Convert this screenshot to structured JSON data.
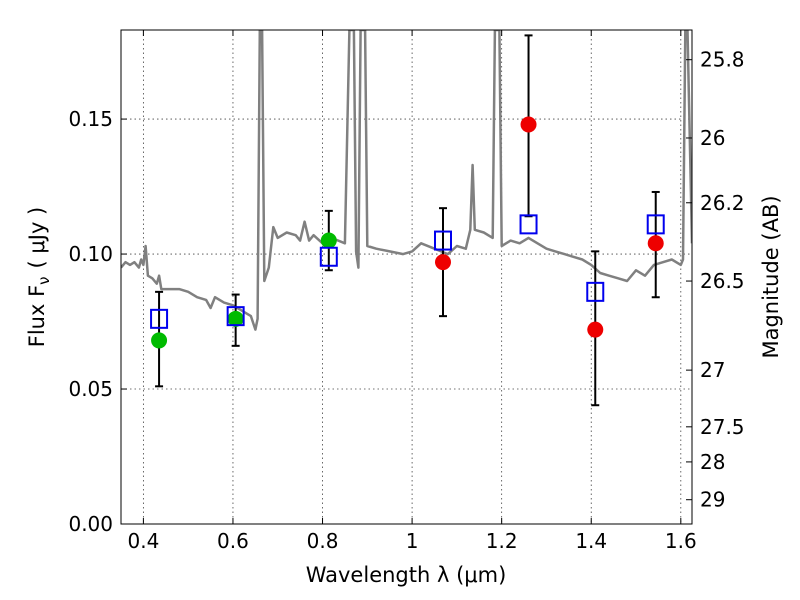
{
  "chart_data": {
    "type": "scatter",
    "xlabel": "Wavelength  λ (μm)",
    "ylabel": "Flux  F",
    "ylabel_sub": "ν",
    "ylabel_unit": "( μJy )",
    "y2label": "Magnitude (AB)",
    "xlim": [
      0.35,
      1.625
    ],
    "ylim": [
      0.0,
      0.183
    ],
    "xticks": [
      0.4,
      0.6,
      0.8,
      1.0,
      1.2,
      1.4,
      1.6
    ],
    "xtick_labels": [
      "0.4",
      "0.6",
      "0.8",
      "1",
      "1.2",
      "1.4",
      "1.6"
    ],
    "yticks": [
      0.0,
      0.05,
      0.1,
      0.15
    ],
    "ytick_labels": [
      "0.00",
      "0.05",
      "0.10",
      "0.15"
    ],
    "y2ticks": [
      {
        "label": "25.8",
        "flux": 0.172
      },
      {
        "label": "26",
        "flux": 0.143
      },
      {
        "label": "26.2",
        "flux": 0.119
      },
      {
        "label": "26.5",
        "flux": 0.09
      },
      {
        "label": "27",
        "flux": 0.057
      },
      {
        "label": "27.5",
        "flux": 0.036
      },
      {
        "label": "28",
        "flux": 0.023
      },
      {
        "label": "29",
        "flux": 0.009
      }
    ],
    "grid": true,
    "series": [
      {
        "name": "Observed (green)",
        "color": "#00bb00",
        "marker": "circle",
        "points": [
          {
            "x": 0.435,
            "y": 0.068,
            "yerr_low": 0.051,
            "yerr_high": 0.086
          },
          {
            "x": 0.606,
            "y": 0.076,
            "yerr_low": 0.066,
            "yerr_high": 0.085
          },
          {
            "x": 0.814,
            "y": 0.105,
            "yerr_low": 0.094,
            "yerr_high": 0.116
          }
        ]
      },
      {
        "name": "Observed (red)",
        "color": "#ee0000",
        "marker": "circle",
        "points": [
          {
            "x": 1.069,
            "y": 0.097,
            "yerr_low": 0.077,
            "yerr_high": 0.117
          },
          {
            "x": 1.26,
            "y": 0.148,
            "yerr_low": 0.114,
            "yerr_high": 0.181
          },
          {
            "x": 1.409,
            "y": 0.072,
            "yerr_low": 0.044,
            "yerr_high": 0.101
          },
          {
            "x": 1.544,
            "y": 0.104,
            "yerr_low": 0.084,
            "yerr_high": 0.123
          }
        ]
      },
      {
        "name": "Model (blue squares)",
        "color": "#0000ee",
        "marker": "open-square",
        "points": [
          {
            "x": 0.435,
            "y": 0.076
          },
          {
            "x": 0.606,
            "y": 0.077
          },
          {
            "x": 0.814,
            "y": 0.099
          },
          {
            "x": 1.069,
            "y": 0.105
          },
          {
            "x": 1.26,
            "y": 0.111
          },
          {
            "x": 1.409,
            "y": 0.086
          },
          {
            "x": 1.544,
            "y": 0.111
          }
        ]
      }
    ],
    "spectrum": {
      "name": "Model spectrum",
      "color": "#808080",
      "points": [
        [
          0.35,
          0.095
        ],
        [
          0.36,
          0.097
        ],
        [
          0.37,
          0.096
        ],
        [
          0.38,
          0.097
        ],
        [
          0.39,
          0.095
        ],
        [
          0.395,
          0.098
        ],
        [
          0.4,
          0.096
        ],
        [
          0.405,
          0.103
        ],
        [
          0.41,
          0.092
        ],
        [
          0.42,
          0.091
        ],
        [
          0.43,
          0.089
        ],
        [
          0.435,
          0.092
        ],
        [
          0.44,
          0.087
        ],
        [
          0.46,
          0.087
        ],
        [
          0.48,
          0.087
        ],
        [
          0.5,
          0.086
        ],
        [
          0.52,
          0.084
        ],
        [
          0.54,
          0.083
        ],
        [
          0.55,
          0.08
        ],
        [
          0.56,
          0.084
        ],
        [
          0.58,
          0.082
        ],
        [
          0.6,
          0.081
        ],
        [
          0.62,
          0.079
        ],
        [
          0.64,
          0.077
        ],
        [
          0.65,
          0.072
        ],
        [
          0.655,
          0.076
        ],
        [
          0.66,
          0.183
        ],
        [
          0.665,
          0.183
        ],
        [
          0.67,
          0.09
        ],
        [
          0.68,
          0.095
        ],
        [
          0.69,
          0.11
        ],
        [
          0.7,
          0.106
        ],
        [
          0.72,
          0.108
        ],
        [
          0.74,
          0.107
        ],
        [
          0.75,
          0.105
        ],
        [
          0.76,
          0.112
        ],
        [
          0.77,
          0.105
        ],
        [
          0.78,
          0.107
        ],
        [
          0.8,
          0.104
        ],
        [
          0.82,
          0.106
        ],
        [
          0.85,
          0.104
        ],
        [
          0.86,
          0.183
        ],
        [
          0.87,
          0.183
        ],
        [
          0.875,
          0.101
        ],
        [
          0.88,
          0.095
        ],
        [
          0.885,
          0.183
        ],
        [
          0.895,
          0.183
        ],
        [
          0.9,
          0.103
        ],
        [
          0.92,
          0.102
        ],
        [
          0.95,
          0.101
        ],
        [
          0.98,
          0.1
        ],
        [
          1.0,
          0.101
        ],
        [
          1.02,
          0.104
        ],
        [
          1.05,
          0.102
        ],
        [
          1.08,
          0.1
        ],
        [
          1.1,
          0.103
        ],
        [
          1.12,
          0.102
        ],
        [
          1.13,
          0.109
        ],
        [
          1.135,
          0.133
        ],
        [
          1.14,
          0.109
        ],
        [
          1.16,
          0.108
        ],
        [
          1.18,
          0.106
        ],
        [
          1.185,
          0.183
        ],
        [
          1.195,
          0.183
        ],
        [
          1.2,
          0.103
        ],
        [
          1.22,
          0.105
        ],
        [
          1.24,
          0.104
        ],
        [
          1.26,
          0.106
        ],
        [
          1.28,
          0.104
        ],
        [
          1.3,
          0.102
        ],
        [
          1.32,
          0.101
        ],
        [
          1.34,
          0.1
        ],
        [
          1.36,
          0.099
        ],
        [
          1.38,
          0.098
        ],
        [
          1.4,
          0.096
        ],
        [
          1.42,
          0.093
        ],
        [
          1.44,
          0.092
        ],
        [
          1.46,
          0.091
        ],
        [
          1.48,
          0.09
        ],
        [
          1.5,
          0.094
        ],
        [
          1.52,
          0.092
        ],
        [
          1.54,
          0.096
        ],
        [
          1.56,
          0.097
        ],
        [
          1.58,
          0.098
        ],
        [
          1.6,
          0.096
        ],
        [
          1.605,
          0.098
        ],
        [
          1.61,
          0.183
        ],
        [
          1.615,
          0.183
        ],
        [
          1.625,
          0.104
        ]
      ]
    }
  }
}
